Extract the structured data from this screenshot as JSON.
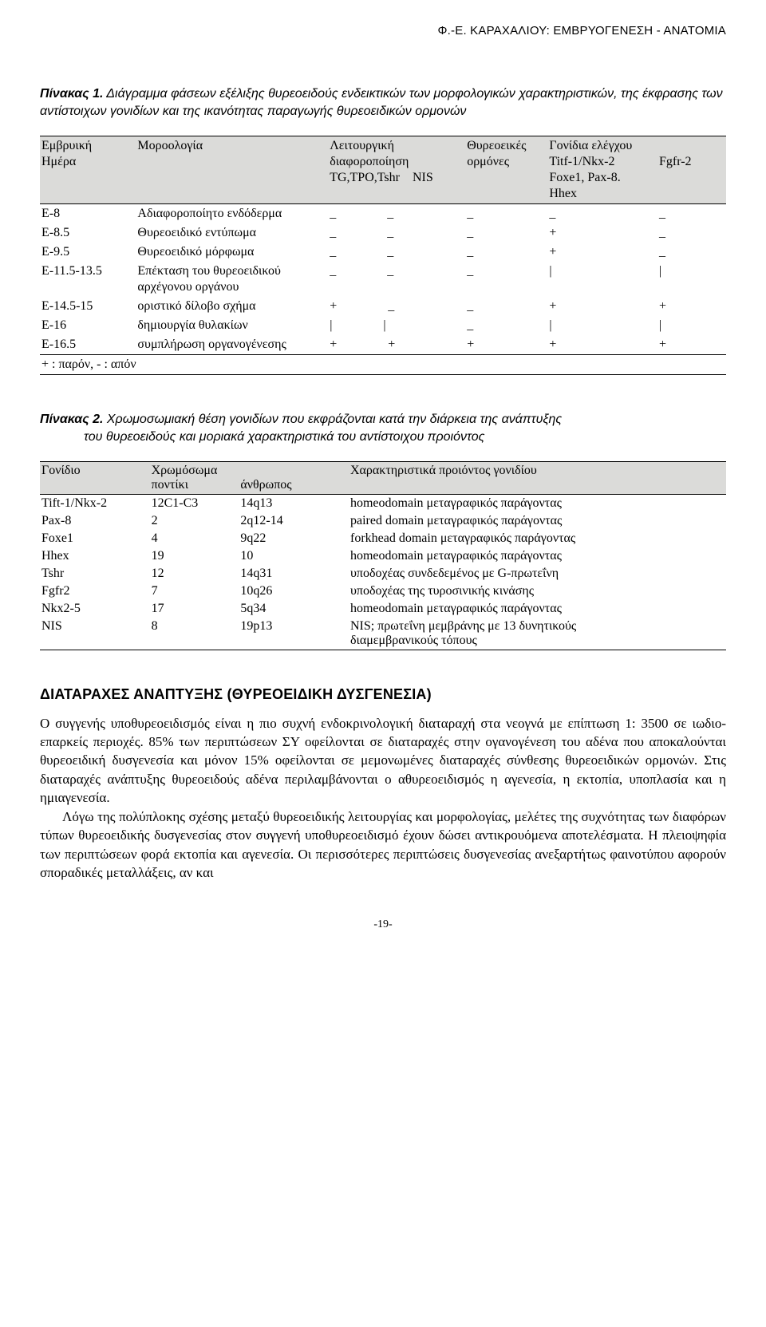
{
  "running_head": "Φ.-Ε. ΚΑΡΑΧΑΛΙΟΥ: ΕΜΒΡΥΟΓΕΝΕΣΗ - ΑΝΑΤΟΜΙΑ",
  "caption1": {
    "bold": "Πίνακας 1.",
    "text": " Διάγραμμα φάσεων εξέλιξης θυρεοειδούς ενδεικτικών των μορφολογικών χαρακτηριστικών, της έκφρασης των αντίστοιχων γονιδίων και της ικανότητας παραγωγής θυρεοειδικών ορμονών"
  },
  "table1": {
    "headers": {
      "c1a": "Εμβρυική",
      "c1b": "Ημέρα",
      "c2a": "Μοροολογία",
      "c3a": "Λειτουργική",
      "c3b": "διαφοροποίηση",
      "c3c": "TG,TPO,Tshr",
      "c3d": "NIS",
      "c4a": "Θυρεοεικές",
      "c4b": "ορμόνες",
      "c5a": "Γονίδια ελέγχου",
      "c5b": "Titf-1/Nkx-2",
      "c5c": "Foxe1, Pax-8.",
      "c5d": "Hhex",
      "c5e": "Fgfr-2"
    },
    "rows": [
      {
        "e": "E-8",
        "m": "Αδιαφοροποίητο ενδόδερμα",
        "a": "_",
        "b": "_",
        "c": "_",
        "d": "_",
        "f": "_"
      },
      {
        "e": "E-8.5",
        "m": "Θυρεοειδικό εντύπωμα",
        "a": "_",
        "b": "_",
        "c": "_",
        "d": "+",
        "f": "_"
      },
      {
        "e": "E-9.5",
        "m": "Θυρεοειδικό μόρφωμα",
        "a": "_",
        "b": "_",
        "c": "_",
        "d": "+",
        "f": "_"
      },
      {
        "e": "E-11.5-13.5",
        "m": "Επέκταση του θυρεοειδικού",
        "m2": "αρχέγονου οργάνου",
        "a": "_",
        "b": "_",
        "c": "_",
        "d": "|",
        "f": "|"
      },
      {
        "e": "E-14.5-15",
        "m": "οριστικό δίλοβο σχήμα",
        "a": "+",
        "b": "_",
        "c": "_",
        "d": "+",
        "f": "+"
      },
      {
        "e": "E-16",
        "m": "δημιουργία θυλακίων",
        "a": "|",
        "b": "|",
        "c": "_",
        "d": "|",
        "f": "|"
      },
      {
        "e": "E-16.5",
        "m": "συμπλήρωση οργανογένεσης",
        "a": "+",
        "b": "+",
        "c": "+",
        "d": "+",
        "f": "+"
      }
    ],
    "legend": "+ : παρόν,   - : απόν"
  },
  "caption2": {
    "bold": "Πίνακας 2.",
    "line1": " Χρωμοσωμιακή θέση γονιδίων που εκφράζονται κατά την διάρκεια της ανάπτυξης",
    "line2": "του θυρεοειδούς και μοριακά χαρακτηριστικά του αντίστοιχου προιόντος"
  },
  "table2": {
    "headers": {
      "c1": "Γονίδιο",
      "c2a": "Χρωμόσωμα",
      "c2b": "ποντίκι",
      "c3": "άνθρωπος",
      "c4": "Χαρακτηριστικά προιόντος γονιδίου"
    },
    "rows": [
      {
        "g": "Tift-1/Nkx-2",
        "m": "12C1-C3",
        "h": "14q13",
        "d": "homeodomain μεταγραφικός παράγοντας"
      },
      {
        "g": "Pax-8",
        "m": "2",
        "h": "2q12-14",
        "d": "paired domain μεταγραφικός παράγοντας"
      },
      {
        "g": "Foxe1",
        "m": "4",
        "h": "9q22",
        "d": "forkhead domain μεταγραφικός παράγοντας"
      },
      {
        "g": "Hhex",
        "m": "19",
        "h": "10",
        "d": "homeodomain μεταγραφικός παράγοντας"
      },
      {
        "g": "Tshr",
        "m": "12",
        "h": "14q31",
        "d": "υποδοχέας συνδεδεμένος με G-πρωτεΐνη"
      },
      {
        "g": "Fgfr2",
        "m": "7",
        "h": "10q26",
        "d": "υποδοχέας της τυροσινικής κινάσης"
      },
      {
        "g": "Nkx2-5",
        "m": "17",
        "h": "5q34",
        "d": "homeodomain μεταγραφικός παράγοντας"
      },
      {
        "g": "NIS",
        "m": "8",
        "h": "19p13",
        "d": "NIS; πρωτεΐνη μεμβράνης με 13 δυνητικούς",
        "d2": "διαμεμβρανικούς τόπους"
      }
    ]
  },
  "section_head": "ΔΙΑΤΑΡΑΧΕΣ ΑΝΑΠΤΥΞΗΣ (ΘΥΡΕΟΕΙΔΙΚΗ ΔΥΣΓΕΝΕΣΙΑ)",
  "para1": "Ο συγγενής υποθυρεοειδισμός είναι η πιο συχνή ενδοκρινολογική διαταραχή στα νεογνά με επίπτωση 1: 3500 σε ιωδιο-επαρκείς περιοχές. 85% των περιπτώσεων ΣΥ οφείλονται σε διαταραχές στην ογανογένεση του αδένα που αποκαλούνται θυρεοειδική δυσγενεσία και μόνον 15% οφείλονται σε μεμονωμένες διαταραχές σύνθεσης θυρεοειδικών ορμονών. Στις διαταραχές ανάπτυξης θυρεοειδούς αδένα περιλαμβάνονται ο αθυρεοειδισμός η αγενεσία, η εκτοπία, υποπλασία και η ημιαγενεσία.",
  "para2": "Λόγω της πολύπλοκης σχέσης μεταξύ θυρεοειδικής λειτουργίας και μορφολογίας, μελέτες της συχνότητας των διαφόρων τύπων θυρεοειδικής δυσγενεσίας στον συγγενή υποθυρεοειδισμό έχουν δώσει αντικρουόμενα αποτελέσματα. Η πλειοψηφία των περιπτώσεων φορά εκτοπία και αγενεσία. Οι περισσότερες περιπτώσεις δυσγενεσίας ανεξαρτήτως φαινοτύπου αφορούν σποραδικές μεταλλάξεις, αν και",
  "pagenum": "-19-"
}
